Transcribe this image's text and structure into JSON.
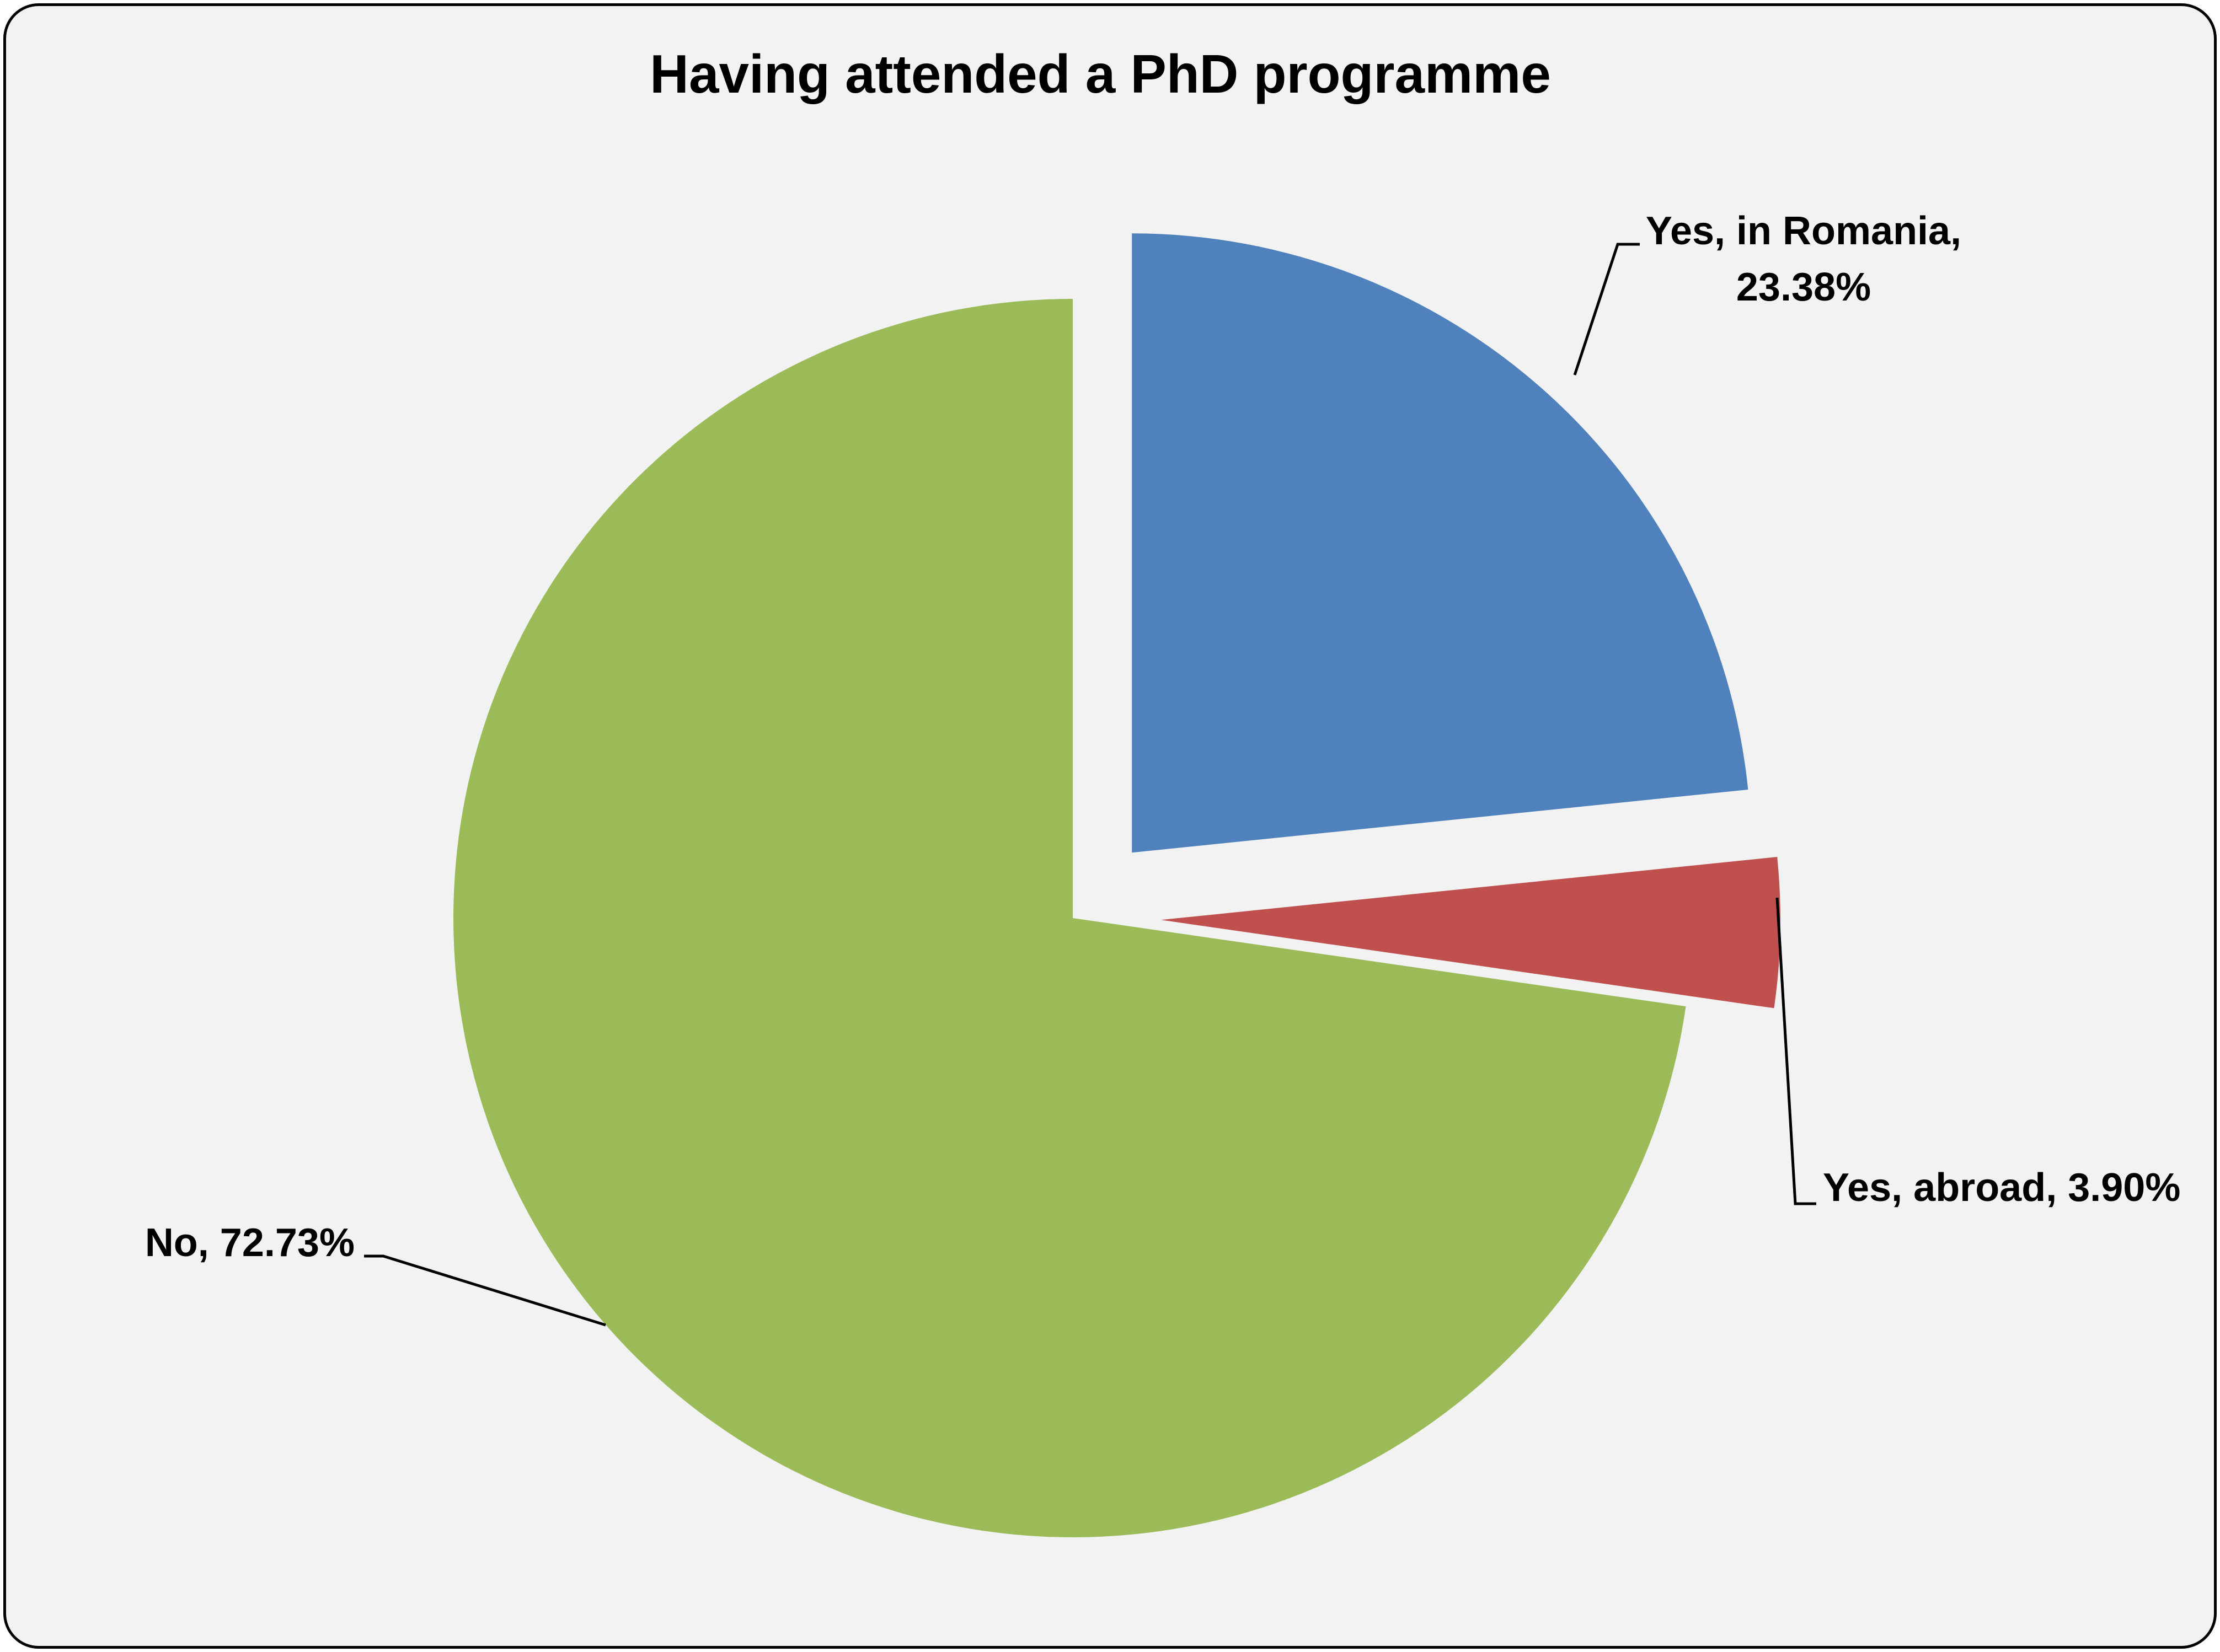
{
  "chart_data": {
    "type": "pie",
    "title": "Having attended a PhD programme",
    "slices": [
      {
        "label_lines": [
          "Yes, in Romania,",
          "23.38%"
        ],
        "category": "Yes, in Romania",
        "value": 23.38,
        "color": "#4f81bd",
        "exploded": true
      },
      {
        "label_lines": [
          "Yes, abroad, 3.90%"
        ],
        "category": "Yes, abroad",
        "value": 3.9,
        "color": "#c0504d",
        "exploded": true
      },
      {
        "label_lines": [
          "No, 72.73%"
        ],
        "category": "No",
        "value": 72.73,
        "color": "#9bbb59",
        "exploded": false
      }
    ],
    "legend": "none",
    "data_labels": "outside with leader lines"
  }
}
